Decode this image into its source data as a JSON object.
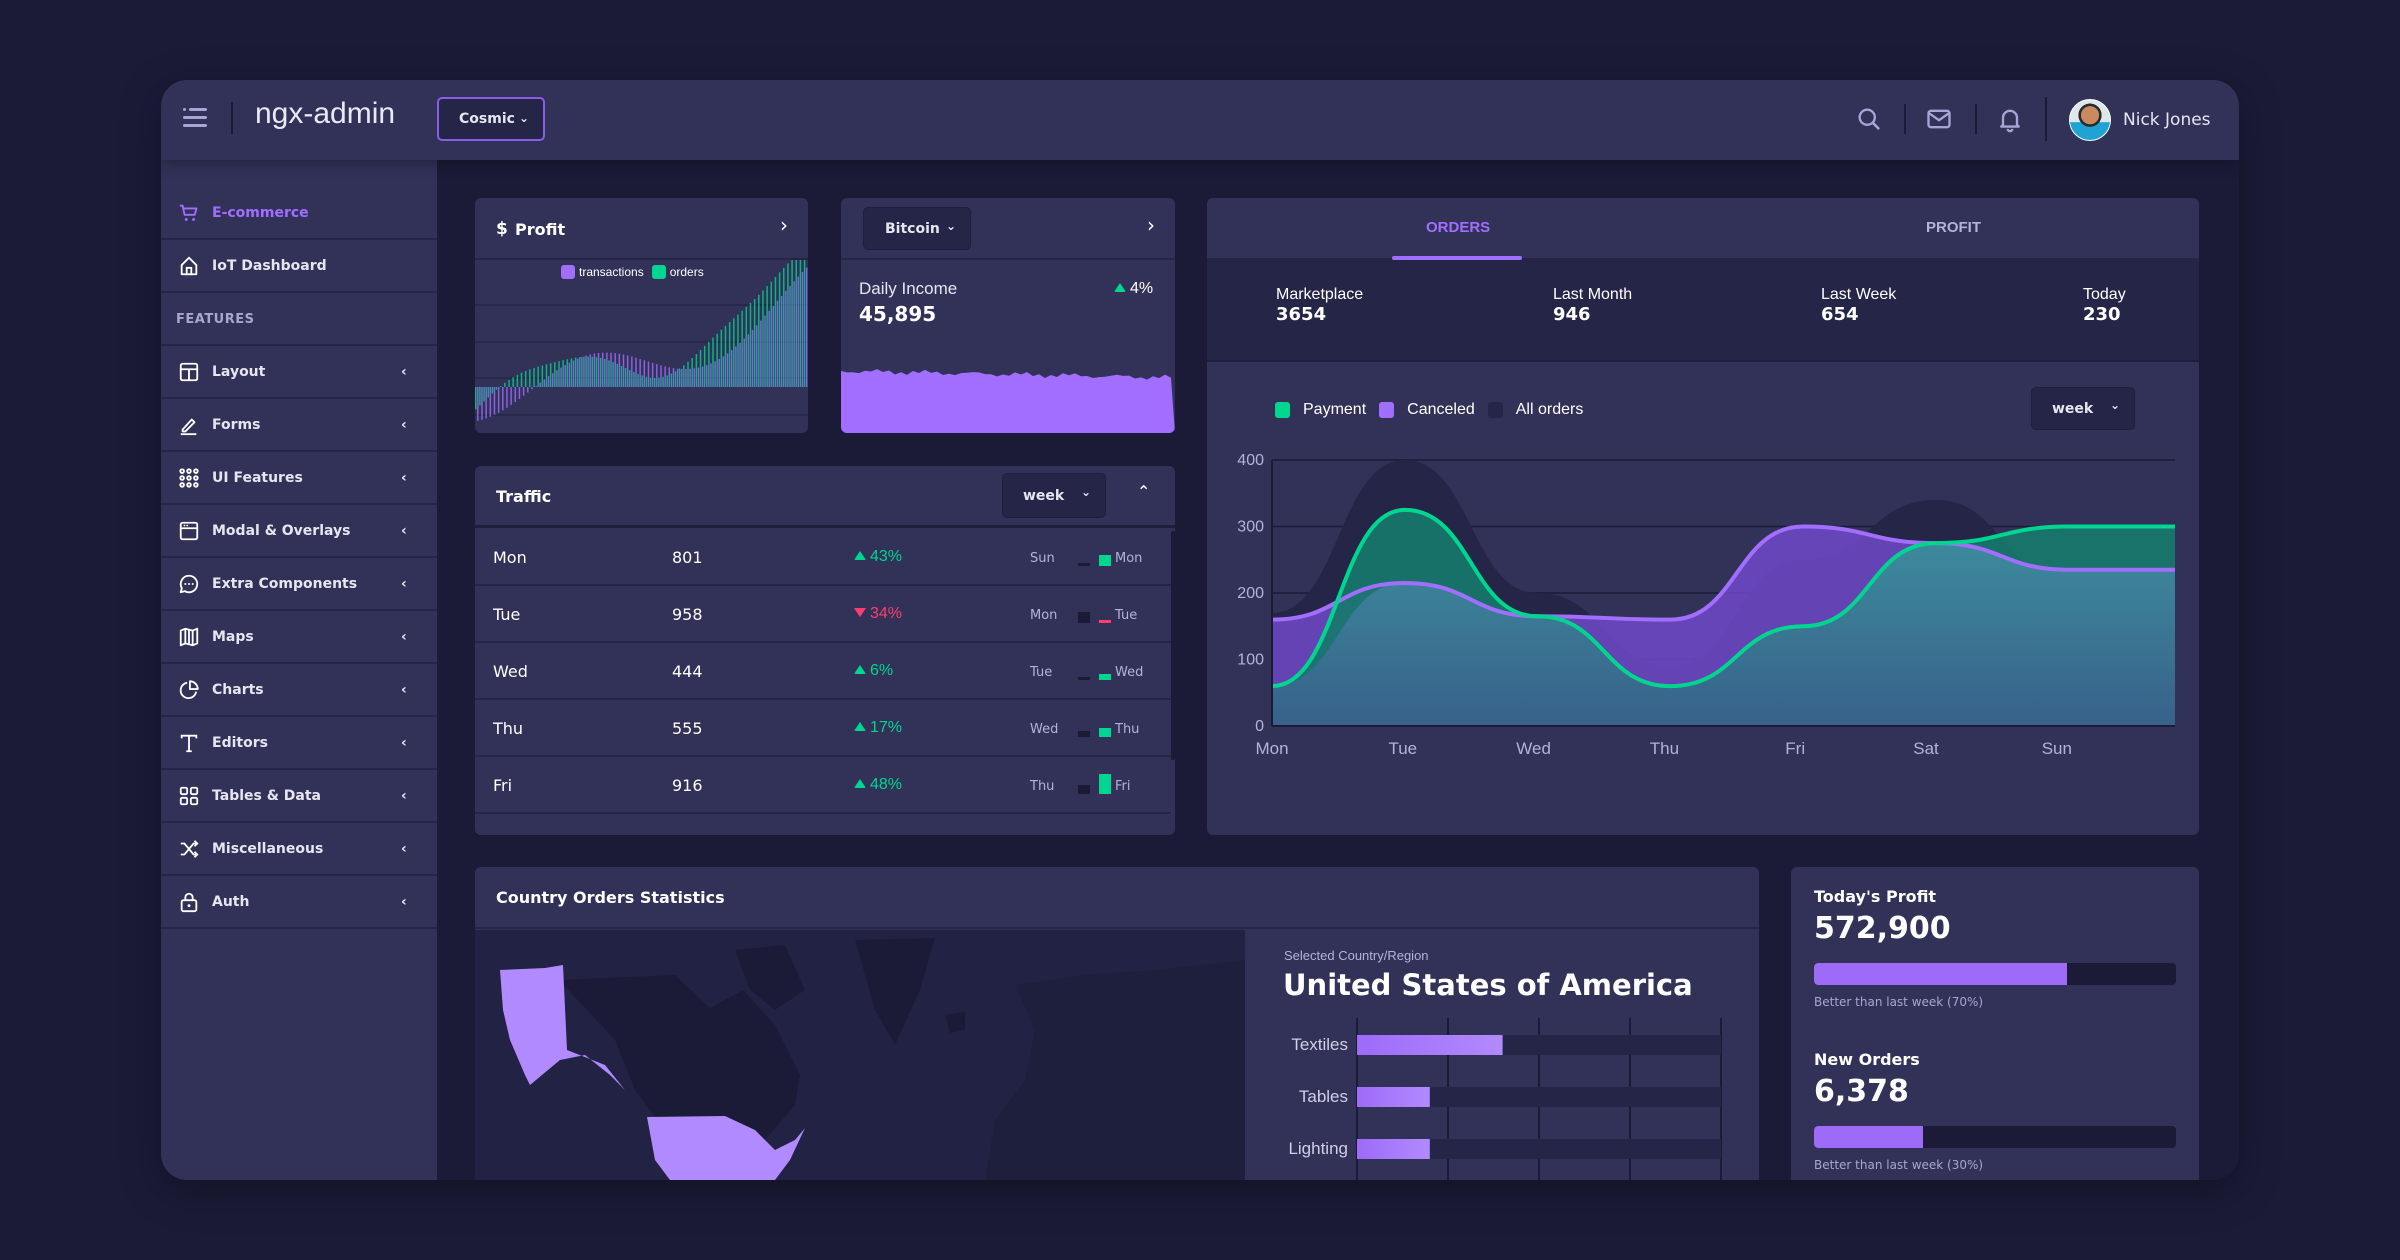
{
  "header": {
    "brand": "ngx-admin",
    "theme_select": "Cosmic",
    "user_name": "Nick Jones",
    "icons": [
      "menu-icon",
      "search-icon",
      "mail-icon",
      "bell-icon"
    ]
  },
  "sidebar": {
    "items": [
      {
        "label": "E-commerce",
        "icon": "cart-icon",
        "active": true
      },
      {
        "label": "IoT Dashboard",
        "icon": "home-icon"
      }
    ],
    "section_title": "FEATURES",
    "features": [
      {
        "label": "Layout",
        "icon": "layout-icon"
      },
      {
        "label": "Forms",
        "icon": "edit-icon"
      },
      {
        "label": "UI Features",
        "icon": "grid-icon"
      },
      {
        "label": "Modal & Overlays",
        "icon": "browser-icon"
      },
      {
        "label": "Extra Components",
        "icon": "message-circle-icon"
      },
      {
        "label": "Maps",
        "icon": "map-icon"
      },
      {
        "label": "Charts",
        "icon": "pie-chart-icon"
      },
      {
        "label": "Editors",
        "icon": "text-icon"
      },
      {
        "label": "Tables & Data",
        "icon": "grid-squares-icon"
      },
      {
        "label": "Miscellaneous",
        "icon": "shuffle-icon"
      },
      {
        "label": "Auth",
        "icon": "lock-icon"
      }
    ]
  },
  "profit_card": {
    "currency": "$",
    "title": "Profit",
    "legend": [
      {
        "label": "transactions",
        "color": "#a16eff"
      },
      {
        "label": "orders",
        "color": "#00d68f"
      }
    ]
  },
  "income_card": {
    "select": "Bitcoin",
    "label": "Daily Income",
    "value": "45,895",
    "delta": "4%"
  },
  "traffic": {
    "title": "Traffic",
    "period": "week",
    "rows": [
      {
        "day": "Mon",
        "value": "801",
        "delta": "43%",
        "dir": "up",
        "prev": "Sun",
        "cur": "Mon",
        "prev_level": 0.1,
        "cur_level": 0.55
      },
      {
        "day": "Tue",
        "value": "958",
        "delta": "34%",
        "dir": "down",
        "prev": "Mon",
        "cur": "Tue",
        "prev_level": 0.55,
        "cur_level": 0.15
      },
      {
        "day": "Wed",
        "value": "444",
        "delta": "6%",
        "dir": "up",
        "prev": "Tue",
        "cur": "Wed",
        "prev_level": 0.15,
        "cur_level": 0.3
      },
      {
        "day": "Thu",
        "value": "555",
        "delta": "17%",
        "dir": "up",
        "prev": "Wed",
        "cur": "Thu",
        "prev_level": 0.3,
        "cur_level": 0.45
      },
      {
        "day": "Fri",
        "value": "916",
        "delta": "48%",
        "dir": "up",
        "prev": "Thu",
        "cur": "Fri",
        "prev_level": 0.45,
        "cur_level": 1.0
      }
    ]
  },
  "orders_card": {
    "tabs": [
      {
        "label": "ORDERS",
        "active": true
      },
      {
        "label": "PROFIT"
      }
    ],
    "stats": [
      {
        "label": "Marketplace",
        "value": "3654"
      },
      {
        "label": "Last Month",
        "value": "946"
      },
      {
        "label": "Last Week",
        "value": "654"
      },
      {
        "label": "Today",
        "value": "230"
      }
    ],
    "period": "week"
  },
  "chart_data": {
    "type": "area",
    "categories": [
      "Mon",
      "Tue",
      "Wed",
      "Thu",
      "Fri",
      "Sat",
      "Sun"
    ],
    "x": [
      0,
      1,
      2,
      3,
      4,
      5,
      6,
      6.8
    ],
    "series": [
      {
        "name": "Payment",
        "color": "#00d68f",
        "values": [
          60,
          325,
          165,
          60,
          150,
          275,
          300,
          300
        ]
      },
      {
        "name": "Canceled",
        "color": "#a16eff",
        "values": [
          160,
          215,
          165,
          160,
          300,
          275,
          235,
          235
        ]
      },
      {
        "name": "All orders",
        "color": "#252547",
        "values": [
          170,
          400,
          200,
          90,
          250,
          340,
          220,
          50
        ]
      }
    ],
    "ylim": [
      0,
      400
    ],
    "yticks": [
      "0",
      "100",
      "200",
      "300",
      "400"
    ],
    "legend_position": "top-left",
    "grid": true
  },
  "country_card": {
    "title": "Country Orders Statistics",
    "selected_label": "Selected Country/Region",
    "country": "United States of America",
    "bars": [
      {
        "label": "Textiles",
        "value": 0.4
      },
      {
        "label": "Tables",
        "value": 0.2
      },
      {
        "label": "Lighting",
        "value": 0.2
      }
    ]
  },
  "progress_card": {
    "items": [
      {
        "title": "Today's Profit",
        "value": "572,900",
        "progress": 0.7,
        "caption": "Better than last week (70%)"
      },
      {
        "title": "New Orders",
        "value": "6,378",
        "progress": 0.3,
        "caption": "Better than last week (30%)"
      }
    ]
  }
}
